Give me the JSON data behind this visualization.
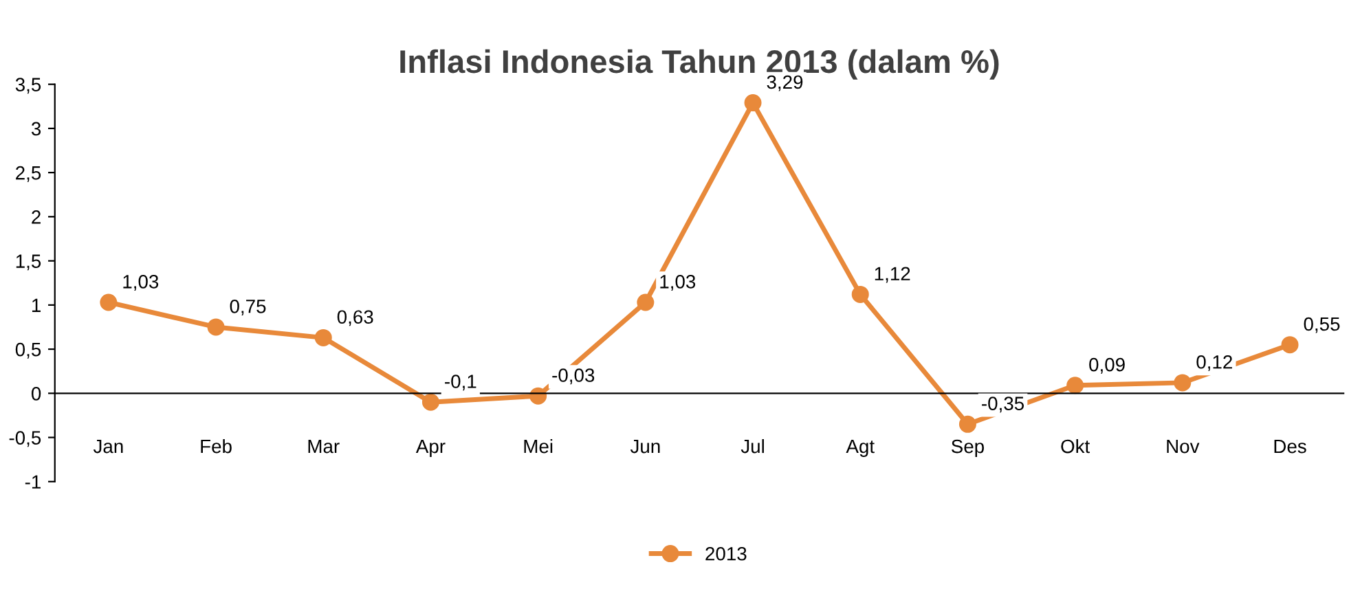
{
  "chart_data": {
    "type": "line",
    "title": "Inflasi Indonesia Tahun 2013 (dalam %)",
    "categories": [
      "Jan",
      "Feb",
      "Mar",
      "Apr",
      "Mei",
      "Jun",
      "Jul",
      "Agt",
      "Sep",
      "Okt",
      "Nov",
      "Des"
    ],
    "series": [
      {
        "name": "2013",
        "color": "#e8893a",
        "values": [
          1.03,
          0.75,
          0.63,
          -0.1,
          -0.03,
          1.03,
          3.29,
          1.12,
          -0.35,
          0.09,
          0.12,
          0.55
        ],
        "value_labels": [
          "1,03",
          "0,75",
          "0,63",
          "-0,1",
          "-0,03",
          "1,03",
          "3,29",
          "1,12",
          "-0,35",
          "0,09",
          "0,12",
          "0,55"
        ]
      }
    ],
    "ylim": [
      -1,
      3.5
    ],
    "yticks": [
      {
        "value": -1,
        "label": "-1"
      },
      {
        "value": -0.5,
        "label": "-0,5"
      },
      {
        "value": 0,
        "label": "0"
      },
      {
        "value": 0.5,
        "label": "0,5"
      },
      {
        "value": 1,
        "label": "1"
      },
      {
        "value": 1.5,
        "label": "1,5"
      },
      {
        "value": 2,
        "label": "2"
      },
      {
        "value": 2.5,
        "label": "2,5"
      },
      {
        "value": 3,
        "label": "3"
      },
      {
        "value": 3.5,
        "label": "3,5"
      }
    ],
    "grid": false,
    "legend": "bottom",
    "marker": "circle",
    "line_style": "solid"
  }
}
